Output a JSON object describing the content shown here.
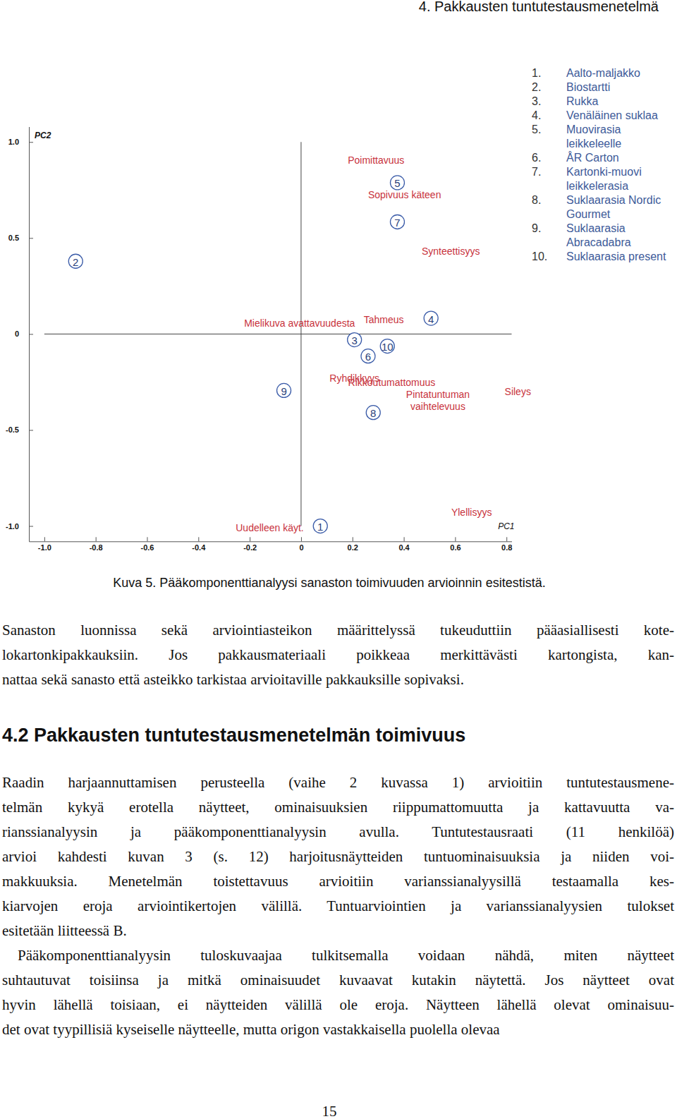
{
  "header": "4. Pakkausten tuntutestausmenetelmä",
  "chart_data": {
    "type": "scatter",
    "x_label": "PC1",
    "y_label": "PC2",
    "xlim": [
      -1.06,
      0.82
    ],
    "ylim": [
      -1.08,
      1.08
    ],
    "xticks": [
      {
        "value": -1,
        "label": "-1.0"
      },
      -0.8,
      -0.6,
      -0.4,
      -0.2,
      0,
      0.2,
      0.4,
      0.6,
      0.8
    ],
    "yticks": [
      {
        "value": -1,
        "label": "-1.0"
      },
      -0.5,
      0,
      0.5,
      {
        "value": 1,
        "label": "1.0"
      }
    ],
    "grid": false,
    "color": "#3a5ba8",
    "points": [
      {
        "label": "1",
        "list_label": "1.",
        "name": "Aalto-maljakko",
        "x": 0.075,
        "y": -1.0
      },
      {
        "label": "2",
        "list_label": "2.",
        "name": "Biostartti",
        "x": -0.878,
        "y": 0.379
      },
      {
        "label": "3",
        "list_label": "3.",
        "name": "Rukka",
        "x": 0.208,
        "y": -0.03
      },
      {
        "label": "4",
        "list_label": "4.",
        "name": "Venäläinen suklaa",
        "x": 0.506,
        "y": 0.082
      },
      {
        "label": "5",
        "list_label": "5.",
        "name": "Muovirasia leikkeleelle",
        "x": 0.375,
        "y": 0.788
      },
      {
        "label": "6",
        "list_label": "6.",
        "name": "ÅR Carton",
        "x": 0.261,
        "y": -0.115
      },
      {
        "label": "7",
        "list_label": "7.",
        "name": "Kartonki-muovi leikkelerasia",
        "x": 0.375,
        "y": 0.584
      },
      {
        "label": "8",
        "list_label": "8.",
        "name": "Suklaarasia Nordic Gourmet",
        "x": 0.281,
        "y": -0.409
      },
      {
        "label": "9",
        "list_label": "9.",
        "name": "Suklaarasia Abracadabra",
        "x": -0.067,
        "y": -0.294
      },
      {
        "label": "10",
        "list_label": "10.",
        "name": "Suklaarasia present",
        "x": 0.336,
        "y": -0.063
      }
    ],
    "annotations": [
      {
        "text": "Poimittavuus",
        "x": 0.292,
        "y": 0.907
      },
      {
        "text": "Sopivuus käteen",
        "x": 0.403,
        "y": 0.725
      },
      {
        "text": "Synteettisyys",
        "x": 0.583,
        "y": 0.431
      },
      {
        "text": "Mielikuva avattavuudesta",
        "x": -0.006,
        "y": 0.056
      },
      {
        "text": "Tahmeus",
        "x": 0.322,
        "y": 0.074
      },
      {
        "text": "Ryhdikkyys",
        "x": 0.208,
        "y": -0.23
      },
      {
        "text": "Rikkoutumattomuus",
        "x": 0.353,
        "y": -0.253
      },
      {
        "text": "Pintatuntuman\nvaihtelevuus",
        "x": 0.533,
        "y": -0.346
      },
      {
        "text": "Sileys",
        "x": 0.844,
        "y": -0.3
      },
      {
        "text": "Ylellisyys",
        "x": 0.664,
        "y": -0.929
      },
      {
        "text": "Uudelleen käyt.",
        "x": -0.122,
        "y": -1.01
      }
    ]
  },
  "caption": "Kuva 5. Pääkomponenttianalyysi sanaston toimivuuden arvioinnin esitestistä.",
  "paragraph": [
    "Sanaston luonnissa sekä arviointiasteikon määrittelyssä tukeuduttiin pääasiallisesti kote-",
    "lokartonkipakkauksiin. Jos pakkausmateriaali poikkeaa merkittävästi kartongista, kan-",
    "nattaa sekä sanasto että asteikko tarkistaa arvioitaville pakkauksille sopivaksi."
  ],
  "section": {
    "heading": "4.2 Pakkausten tuntutestausmenetelmän toimivuus",
    "paragraphs": [
      [
        "Raadin harjaannuttamisen perusteella (vaihe 2 kuvassa 1) arvioitiin tuntutestausmene-",
        "telmän kykyä erotella näytteet, ominaisuuksien riippumattomuutta ja kattavuutta va-",
        "rianssianalyysin ja pääkomponenttianalyysin avulla. Tuntutestausraati (11 henkilöä)",
        "arvioi kahdesti kuvan 3 (s. 12) harjoitusnäytteiden tuntuominaisuuksia ja niiden voi-",
        "makkuuksia. Menetelmän toistettavuus arvioitiin varianssianalyysillä testaamalla kes-",
        "kiarvojen eroja arviointikertojen välillä. Tuntuarviointien ja varianssianalyysien tulokset",
        "esitetään liitteessä B."
      ],
      [
        "Pääkomponenttianalyysin tuloskuvaajaa tulkitsemalla voidaan nähdä, miten näytteet",
        "suhtautuvat toisiinsa ja mitkä ominaisuudet kuvaavat kutakin näytettä. Jos näytteet ovat",
        "hyvin lähellä toisiaan, ei näytteiden välillä ole eroja. Näytteen lähellä olevat ominaisuu-",
        "det ovat tyypillisiä kyseiselle näytteelle, mutta origon vastakkaisella puolella olevaa"
      ]
    ]
  },
  "page_number": "15"
}
